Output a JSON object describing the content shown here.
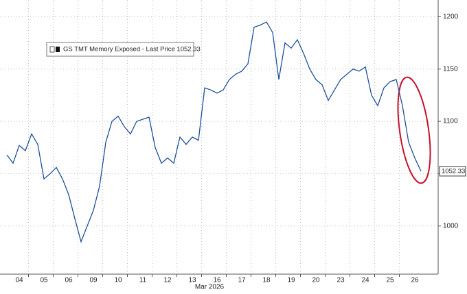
{
  "chart_data": {
    "type": "line",
    "x_axis_label": "Mar 2026",
    "categories": [
      null,
      null,
      "04",
      null,
      null,
      null,
      "05",
      null,
      null,
      null,
      "06",
      null,
      null,
      null,
      "09",
      null,
      null,
      null,
      "10",
      null,
      null,
      null,
      "11",
      null,
      null,
      null,
      "12",
      null,
      null,
      null,
      "13",
      null,
      null,
      null,
      "16",
      null,
      null,
      null,
      "17",
      null,
      null,
      null,
      "18",
      null,
      null,
      null,
      "19",
      null,
      null,
      null,
      "20",
      null,
      null,
      null,
      "23",
      null,
      null,
      null,
      "24",
      null,
      null,
      null,
      "25",
      null,
      null,
      null,
      "26",
      null
    ],
    "series": [
      {
        "name": "GS TMT Memory Exposed - Last Price 1052.33",
        "color": "#1c4f9c",
        "values": [
          1068,
          1060,
          1077,
          1072,
          1088,
          1078,
          1045,
          1050,
          1056,
          1045,
          1030,
          1007,
          985,
          1000,
          1015,
          1038,
          1080,
          1100,
          1105,
          1095,
          1088,
          1100,
          1102,
          1104,
          1075,
          1060,
          1065,
          1060,
          1085,
          1078,
          1085,
          1082,
          1132,
          1130,
          1127,
          1130,
          1140,
          1145,
          1148,
          1155,
          1190,
          1192,
          1195,
          1185,
          1140,
          1175,
          1170,
          1178,
          1165,
          1150,
          1140,
          1135,
          1120,
          1130,
          1140,
          1145,
          1150,
          1148,
          1152,
          1125,
          1115,
          1132,
          1138,
          1140,
          1115,
          1080,
          1065,
          1052.33
        ]
      }
    ],
    "ylim": [
      954,
      1216
    ],
    "yticks": [
      1000,
      1050,
      1100,
      1150,
      1200
    ],
    "grid": true,
    "legend": "top-left"
  }
}
